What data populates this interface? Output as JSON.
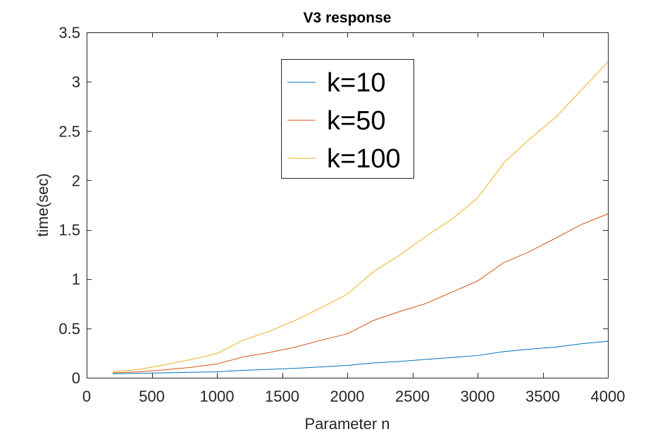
{
  "chart_data": {
    "type": "line",
    "title": "V3 response",
    "xlabel": "Parameter n",
    "ylabel": "time(sec)",
    "xlim": [
      0,
      4000
    ],
    "ylim": [
      0,
      3.5
    ],
    "xticks": [
      0,
      500,
      1000,
      1500,
      2000,
      2500,
      3000,
      3500,
      4000
    ],
    "xtick_labels": [
      "0",
      "500",
      "1000",
      "1500",
      "2000",
      "2500",
      "3000",
      "3500",
      "4000"
    ],
    "yticks": [
      0,
      0.5,
      1,
      1.5,
      2,
      2.5,
      3,
      3.5
    ],
    "ytick_labels": [
      "0",
      "0.5",
      "1",
      "1.5",
      "2",
      "2.5",
      "3",
      "3.5"
    ],
    "grid": false,
    "legend_position": "top-center",
    "x": [
      200,
      400,
      600,
      800,
      1000,
      1200,
      1400,
      1600,
      1800,
      2000,
      2200,
      2400,
      2600,
      2800,
      3000,
      3200,
      3400,
      3600,
      3800,
      4000
    ],
    "series": [
      {
        "name": "k=10",
        "color": "#0072BD",
        "values": [
          0.04,
          0.045,
          0.05,
          0.055,
          0.06,
          0.075,
          0.085,
          0.095,
          0.11,
          0.125,
          0.15,
          0.165,
          0.185,
          0.205,
          0.225,
          0.265,
          0.29,
          0.31,
          0.345,
          0.37
        ]
      },
      {
        "name": "k=50",
        "color": "#D95319",
        "values": [
          0.05,
          0.06,
          0.08,
          0.105,
          0.14,
          0.21,
          0.255,
          0.31,
          0.38,
          0.445,
          0.58,
          0.67,
          0.75,
          0.865,
          0.98,
          1.165,
          1.28,
          1.415,
          1.555,
          1.66
        ]
      },
      {
        "name": "k=100",
        "color": "#EDB120",
        "values": [
          0.06,
          0.085,
          0.13,
          0.185,
          0.245,
          0.38,
          0.47,
          0.58,
          0.71,
          0.845,
          1.075,
          1.24,
          1.43,
          1.605,
          1.82,
          2.175,
          2.42,
          2.64,
          2.92,
          3.2
        ]
      }
    ]
  }
}
